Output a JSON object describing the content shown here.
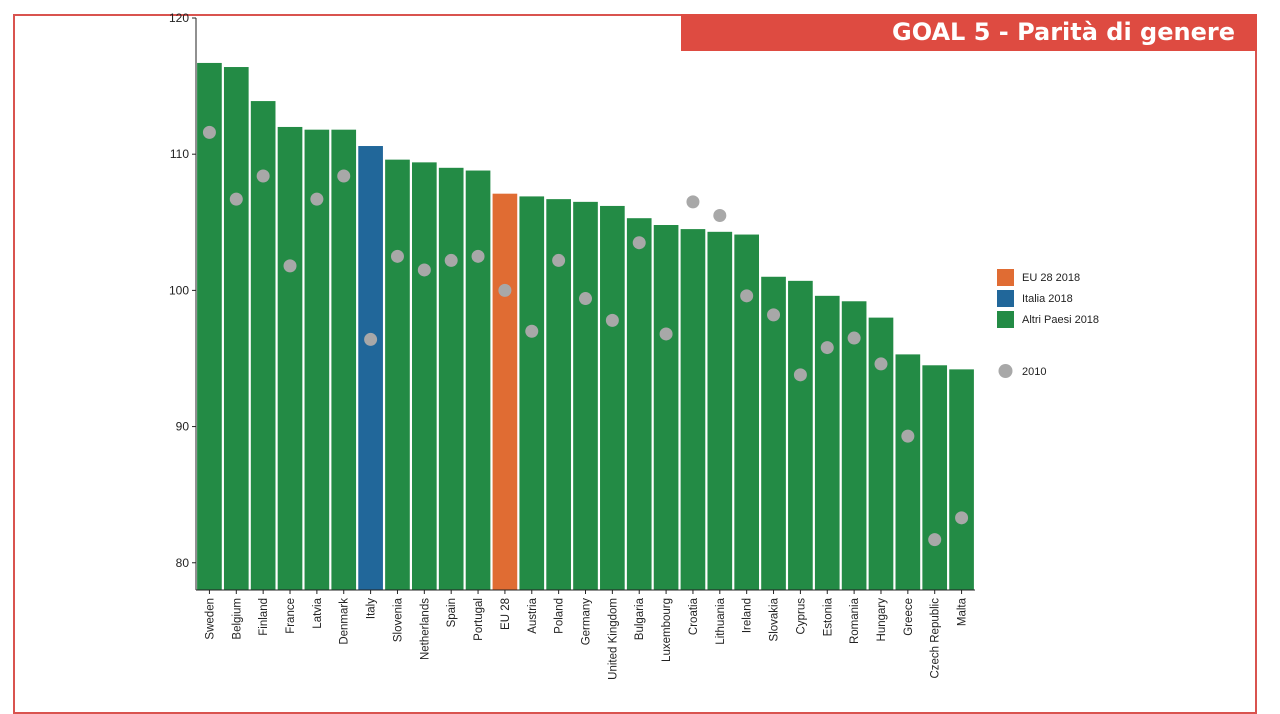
{
  "header": {
    "title": "GOAL 5 - Parità di genere"
  },
  "colors": {
    "eu": "#e06c33",
    "italy": "#21679a",
    "others": "#238b45",
    "dot2010": "#a8a8a8",
    "banner": "#de4b41"
  },
  "chart_data": {
    "type": "bar",
    "title": "",
    "xlabel": "",
    "ylabel": "",
    "ylim": [
      78,
      120
    ],
    "yticks": [
      80,
      90,
      100,
      110,
      120
    ],
    "grid": false,
    "legend_position": "right",
    "categories": [
      "Sweden",
      "Belgium",
      "Finland",
      "France",
      "Latvia",
      "Denmark",
      "Italy",
      "Slovenia",
      "Netherlands",
      "Spain",
      "Portugal",
      "EU 28",
      "Austria",
      "Poland",
      "Germany",
      "United Kingdom",
      "Bulgaria",
      "Luxembourg",
      "Croatia",
      "Lithuania",
      "Ireland",
      "Slovakia",
      "Cyprus",
      "Estonia",
      "Romania",
      "Hungary",
      "Greece",
      "Czech Republic",
      "Malta"
    ],
    "groups": [
      "Altri Paesi 2018",
      "Altri Paesi 2018",
      "Altri Paesi 2018",
      "Altri Paesi 2018",
      "Altri Paesi 2018",
      "Altri Paesi 2018",
      "Italia 2018",
      "Altri Paesi 2018",
      "Altri Paesi 2018",
      "Altri Paesi 2018",
      "Altri Paesi 2018",
      "EU 28 2018",
      "Altri Paesi 2018",
      "Altri Paesi 2018",
      "Altri Paesi 2018",
      "Altri Paesi 2018",
      "Altri Paesi 2018",
      "Altri Paesi 2018",
      "Altri Paesi 2018",
      "Altri Paesi 2018",
      "Altri Paesi 2018",
      "Altri Paesi 2018",
      "Altri Paesi 2018",
      "Altri Paesi 2018",
      "Altri Paesi 2018",
      "Altri Paesi 2018",
      "Altri Paesi 2018",
      "Altri Paesi 2018",
      "Altri Paesi 2018"
    ],
    "series": [
      {
        "name": "2018",
        "values": [
          116.7,
          116.4,
          113.9,
          112.0,
          111.8,
          111.8,
          110.6,
          109.6,
          109.4,
          109.0,
          108.8,
          107.1,
          106.9,
          106.7,
          106.5,
          106.2,
          105.3,
          104.8,
          104.5,
          104.3,
          104.1,
          101.0,
          100.7,
          99.6,
          99.2,
          98.0,
          95.3,
          94.5,
          94.2
        ]
      },
      {
        "name": "2010",
        "values": [
          111.6,
          106.7,
          108.4,
          101.8,
          106.7,
          108.4,
          96.4,
          102.5,
          101.5,
          102.2,
          102.5,
          100.0,
          97.0,
          102.2,
          99.4,
          97.8,
          103.5,
          96.8,
          106.5,
          105.5,
          99.6,
          98.2,
          93.8,
          95.8,
          96.5,
          94.6,
          89.3,
          81.7,
          83.3
        ]
      }
    ],
    "legend": [
      {
        "label": "EU 28 2018",
        "color": "#e06c33"
      },
      {
        "label": "Italia 2018",
        "color": "#21679a"
      },
      {
        "label": "Altri Paesi 2018",
        "color": "#238b45"
      },
      {
        "label": "2010",
        "color": "#a8a8a8"
      }
    ]
  }
}
